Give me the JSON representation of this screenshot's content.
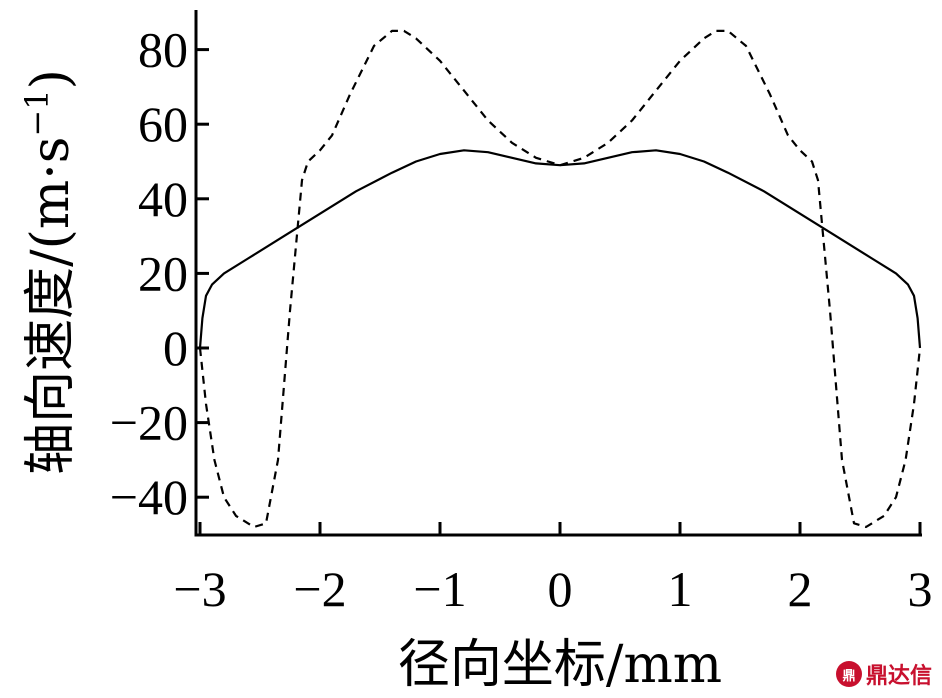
{
  "chart_data": {
    "type": "line",
    "xlabel": "径向坐标/mm",
    "ylabel": "轴向速度/(m·s",
    "ylabel_sup": "−1",
    "ylabel_close": ")",
    "xlim": [
      -3,
      3
    ],
    "ylim": [
      -50,
      90
    ],
    "x_ticks": [
      -3,
      -2,
      -1,
      0,
      1,
      2,
      3
    ],
    "x_tick_labels": [
      "−3",
      "−2",
      "−1",
      "0",
      "1",
      "2",
      "3"
    ],
    "y_ticks": [
      -40,
      -20,
      0,
      20,
      40,
      60,
      80
    ],
    "y_tick_labels": [
      "−40",
      "−20",
      "0",
      "20",
      "40",
      "60",
      "80"
    ],
    "grid": false,
    "series": [
      {
        "style": "solid",
        "color": "#000000",
        "x": [
          -3.0,
          -2.98,
          -2.95,
          -2.9,
          -2.8,
          -2.6,
          -2.3,
          -2.0,
          -1.7,
          -1.4,
          -1.2,
          -1.0,
          -0.8,
          -0.6,
          -0.4,
          -0.2,
          0.0,
          0.2,
          0.4,
          0.6,
          0.8,
          1.0,
          1.2,
          1.4,
          1.7,
          2.0,
          2.3,
          2.6,
          2.8,
          2.9,
          2.95,
          2.98,
          3.0
        ],
        "y": [
          0,
          8,
          14,
          17,
          20,
          24,
          30,
          36,
          42,
          47,
          50,
          52,
          53,
          52.5,
          51,
          49.5,
          49,
          49.5,
          51,
          52.5,
          53,
          52,
          50,
          47,
          42,
          36,
          30,
          24,
          20,
          17,
          14,
          8,
          0
        ]
      },
      {
        "style": "dashed",
        "color": "#000000",
        "x": [
          -3.0,
          -2.95,
          -2.88,
          -2.8,
          -2.7,
          -2.55,
          -2.45,
          -2.35,
          -2.25,
          -2.15,
          -2.1,
          -2.0,
          -1.9,
          -1.75,
          -1.55,
          -1.4,
          -1.3,
          -1.2,
          -1.0,
          -0.8,
          -0.6,
          -0.4,
          -0.2,
          0.0,
          0.2,
          0.4,
          0.6,
          0.8,
          1.0,
          1.2,
          1.3,
          1.4,
          1.55,
          1.75,
          1.9,
          2.0,
          2.1,
          2.15,
          2.25,
          2.35,
          2.45,
          2.55,
          2.7,
          2.8,
          2.88,
          2.95,
          3.0
        ],
        "y": [
          0,
          -15,
          -30,
          -40,
          -45,
          -48,
          -47,
          -30,
          10,
          45,
          50,
          53,
          57,
          68,
          81,
          85,
          85,
          83,
          77,
          69,
          61,
          55,
          51,
          49,
          51,
          55,
          61,
          69,
          77,
          83,
          85,
          85,
          81,
          68,
          57,
          53,
          50,
          45,
          10,
          -30,
          -47,
          -48,
          -45,
          -40,
          -30,
          -15,
          0
        ]
      }
    ]
  },
  "watermark": {
    "logo_text": "鼎",
    "text": "鼎达信"
  }
}
